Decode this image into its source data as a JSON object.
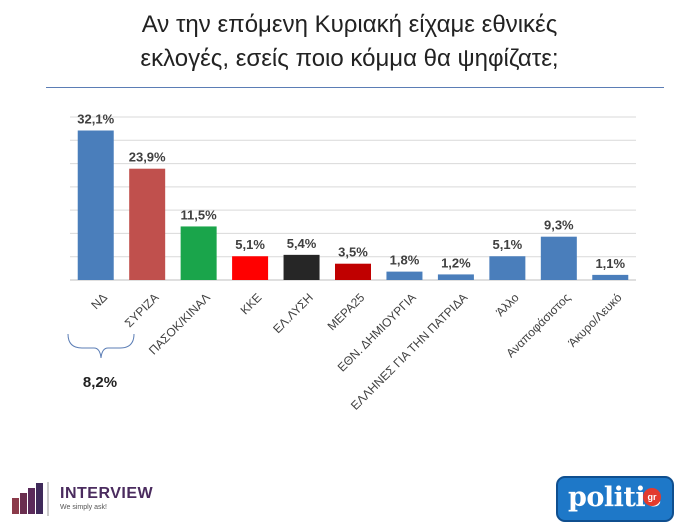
{
  "header": {
    "title_line1": "Αν την επόμενη Κυριακή είχαμε εθνικές",
    "title_line2": "εκλογές, εσείς ποιο κόμμα θα ψηφίζατε;"
  },
  "chart_data": {
    "type": "bar",
    "title": "",
    "xlabel": "",
    "ylabel": "",
    "ylim": [
      0,
      35
    ],
    "grid": true,
    "categories": [
      "ΝΔ",
      "ΣΥΡΙΖΑ",
      "ΠΑΣΟΚ/ΚΙΝΑΛ",
      "ΚΚΕ",
      "ΕΛ.ΛΥΣΗ",
      "ΜΕΡΑ25",
      "ΕΘΝ. ΔΗΜΙΟΥΡΓΙΑ",
      "ΕΛΛΗΝΕΣ ΓΙΑ ΤΗΝ ΠΑΤΡΙΔΑ",
      "Άλλο",
      "Αναποφάσιστος",
      "Άκυρο/Λευκό"
    ],
    "values": [
      32.1,
      23.9,
      11.5,
      5.1,
      5.4,
      3.5,
      1.8,
      1.2,
      5.1,
      9.3,
      1.1
    ],
    "value_labels": [
      "32,1%",
      "23,9%",
      "11,5%",
      "5,1%",
      "5,4%",
      "3,5%",
      "1,8%",
      "1,2%",
      "5,1%",
      "9,3%",
      "1,1%"
    ],
    "colors": [
      "#4a7ebb",
      "#c0504d",
      "#1aa54b",
      "#ff0000",
      "#262626",
      "#c00000",
      "#4a7ebb",
      "#4a7ebb",
      "#4a7ebb",
      "#4a7ebb",
      "#4a7ebb"
    ],
    "annotation": "8,2%"
  },
  "logos": {
    "interview_name": "INTERVIEW",
    "interview_tagline": "We simply ask!",
    "politic_word": "politic",
    "politic_suffix": "gr"
  }
}
